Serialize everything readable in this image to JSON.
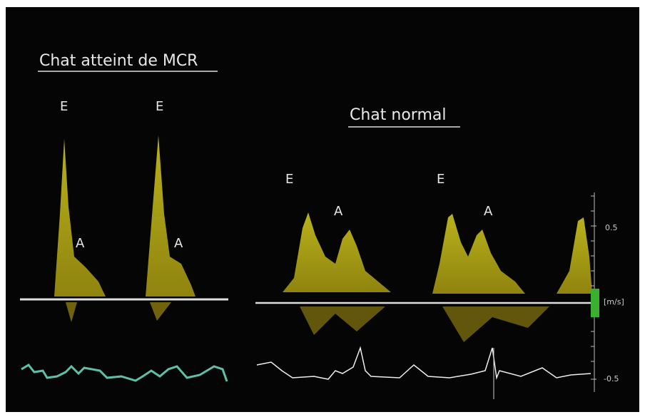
{
  "panels": [
    {
      "title": "Chat atteint de MCR",
      "labels": [
        "E",
        "E",
        "A",
        "A"
      ]
    },
    {
      "title": "Chat normal",
      "labels": [
        "E",
        "E",
        "A",
        "A"
      ]
    }
  ],
  "scale": {
    "top": "0.5",
    "unit": "[m/s]",
    "bottom": "-0.5"
  }
}
